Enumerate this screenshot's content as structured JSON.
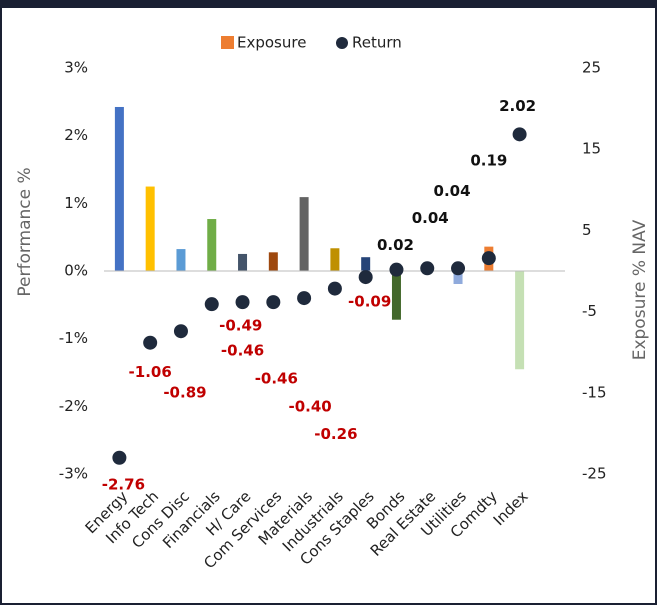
{
  "chart_data": {
    "type": "combo",
    "ylabel": "Performance %",
    "y2label": "Exposure % NAV",
    "legend": "top",
    "categories": [
      "Energy",
      "Info Tech",
      "Cons Disc",
      "Financials",
      "H/ Care",
      "Com Services",
      "Materials",
      "Industrials",
      "Cons Staples",
      "Bonds",
      "Real Estate",
      "Utilities",
      "Comdty",
      "Index"
    ],
    "series": [
      {
        "name": "Exposure",
        "color": "#ed7d31",
        "axis": "y2",
        "colors": [
          "#4472c4",
          "#ffc000",
          "#5b9bd5",
          "#70ad47",
          "#44546a",
          "#9e480e",
          "#636363",
          "#bf9000",
          "#264478",
          "#43682b",
          "#ed7d31",
          "#8faadc",
          "#ed7d31",
          "#c5e0b4"
        ],
        "values": [
          20.2,
          10.4,
          2.7,
          6.4,
          2.1,
          2.3,
          9.1,
          2.8,
          1.7,
          -6.0,
          -0.3,
          -1.6,
          3.0,
          -12.1
        ]
      },
      {
        "name": "Return",
        "color": "#1f2a3c",
        "values": [
          -2.76,
          -1.06,
          -0.89,
          -0.49,
          -0.46,
          -0.46,
          -0.4,
          -0.26,
          -0.09,
          0.02,
          0.04,
          0.04,
          0.19,
          2.02
        ],
        "value_labels": [
          "-2.76",
          "-1.06",
          "-0.89",
          "-0.49",
          "-0.46",
          "-0.46",
          "-0.40",
          "-0.26",
          "-0.09",
          "0.02",
          "0.04",
          "0.04",
          "0.19",
          "2.02"
        ]
      }
    ],
    "ylim": [
      -3,
      3
    ],
    "yticks": [
      {
        "value": 3,
        "label": "3%"
      },
      {
        "value": 2,
        "label": "2%"
      },
      {
        "value": 1,
        "label": "1%"
      },
      {
        "value": 0,
        "label": "0%"
      },
      {
        "value": -1,
        "label": "-1%"
      },
      {
        "value": -2,
        "label": "-2%"
      },
      {
        "value": -3,
        "label": "-3%"
      }
    ],
    "y2lim": [
      -25,
      25
    ],
    "y2ticks": [
      25,
      15,
      5,
      -5,
      -15,
      -25
    ]
  }
}
